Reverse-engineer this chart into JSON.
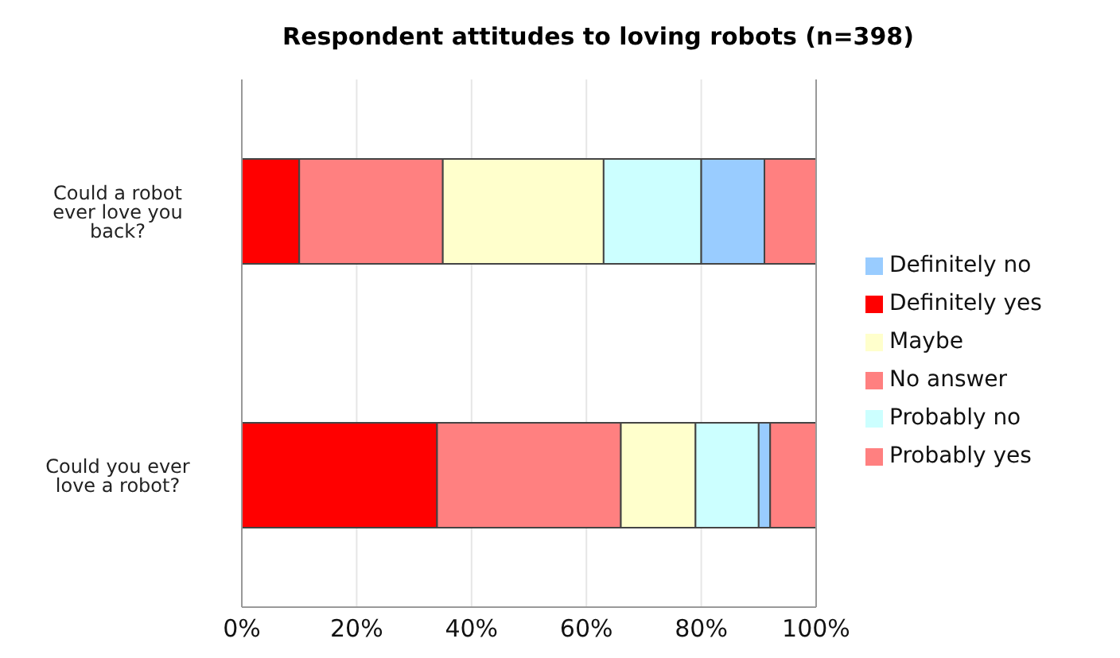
{
  "chart_data": {
    "type": "bar",
    "orientation": "horizontal",
    "stacked": true,
    "title": "Respondent attitudes to loving robots (n=398)",
    "categories": [
      "Could a robot ever love you back?",
      "Could you ever love a robot?"
    ],
    "series": [
      {
        "name": "Definitely yes",
        "color": "#ff0000",
        "values": [
          10,
          34
        ]
      },
      {
        "name": "Probably yes",
        "color": "#ff8080",
        "values": [
          25,
          32
        ]
      },
      {
        "name": "Maybe",
        "color": "#ffffcc",
        "values": [
          28,
          13
        ]
      },
      {
        "name": "Probably no",
        "color": "#ccffff",
        "values": [
          17,
          11
        ]
      },
      {
        "name": "Definitely no",
        "color": "#99ccff",
        "values": [
          11,
          2
        ]
      },
      {
        "name": "No answer",
        "color": "#ff8080",
        "values": [
          9,
          8
        ]
      }
    ],
    "xlim": [
      0,
      100
    ],
    "xticks": [
      {
        "value": 0,
        "label": "0%"
      },
      {
        "value": 20,
        "label": "20%"
      },
      {
        "value": 40,
        "label": "40%"
      },
      {
        "value": 60,
        "label": "60%"
      },
      {
        "value": 80,
        "label": "80%"
      },
      {
        "value": 100,
        "label": "100%"
      }
    ],
    "grid": "x",
    "legend": "right"
  }
}
